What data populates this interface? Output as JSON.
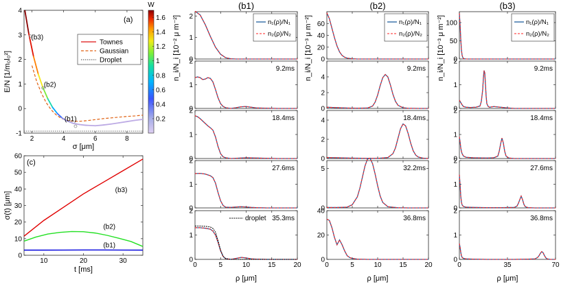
{
  "chart_data": [
    {
      "id": "a",
      "type": "line",
      "panel_label": "(a)",
      "xlabel": "σ [μm]",
      "ylabel": "E/N [1/m₀l₀²]",
      "xlim": [
        1.5,
        9
      ],
      "ylim": [
        -1,
        4
      ],
      "xticks": [
        2,
        4,
        6,
        8
      ],
      "yticks": [
        -1,
        0,
        1,
        2,
        3,
        4
      ],
      "series": [
        {
          "name": "Townes",
          "color": "#dd1111",
          "style": "solid",
          "x": [
            1.5,
            1.8,
            2.1,
            2.4,
            2.7,
            3.0,
            3.3,
            3.6,
            3.9,
            4.2,
            4.6,
            5.0,
            5.4,
            6.0,
            6.5,
            7.0,
            7.5,
            8.0,
            8.5,
            9.0
          ],
          "y": [
            4.2,
            3.05,
            2.12,
            1.4,
            0.84,
            0.4,
            0.05,
            -0.2,
            -0.38,
            -0.5,
            -0.6,
            -0.65,
            -0.68,
            -0.7,
            -0.67,
            -0.63,
            -0.58,
            -0.53,
            -0.48,
            -0.44
          ]
        },
        {
          "name": "Gaussian",
          "color": "#e06010",
          "style": "dashed",
          "x": [
            2.0,
            2.3,
            2.6,
            2.9,
            3.2,
            3.5,
            3.8,
            4.1,
            4.5,
            5.0,
            5.5,
            6.0,
            6.5,
            7.0,
            7.5,
            8.0,
            8.5,
            9.0
          ],
          "y": [
            1.75,
            1.1,
            0.62,
            0.24,
            -0.04,
            -0.24,
            -0.38,
            -0.46,
            -0.51,
            -0.52,
            -0.49,
            -0.45,
            -0.41,
            -0.38,
            -0.35,
            -0.32,
            -0.3,
            -0.27
          ]
        },
        {
          "name": "Droplet",
          "color": "#666666",
          "style": "dotted",
          "x": [
            1.5,
            9.0
          ],
          "y": [
            -0.92,
            -0.92
          ]
        }
      ],
      "markers": [
        {
          "label": "(b3)",
          "x": 1.9,
          "y": 2.95
        },
        {
          "label": "(b2)",
          "x": 2.7,
          "y": 0.84
        },
        {
          "label": "(b1)",
          "x": 4.75,
          "y": -0.72
        }
      ],
      "colorbar": {
        "title": "W",
        "range": [
          0,
          1.7
        ],
        "ticks": [
          0.2,
          0.4,
          0.6,
          0.8,
          1,
          1.2,
          1.4,
          1.6
        ]
      }
    },
    {
      "id": "c",
      "type": "line",
      "panel_label": "(c)",
      "xlabel": "t [ms]",
      "ylabel": "σ(t) [μm]",
      "xlim": [
        5,
        35
      ],
      "ylim": [
        0,
        60
      ],
      "xticks": [
        10,
        20,
        30
      ],
      "yticks": [
        0,
        10,
        20,
        30,
        40,
        50,
        60
      ],
      "series": [
        {
          "name": "(b3)",
          "color": "#e00000",
          "x": [
            5,
            10,
            15,
            20,
            25,
            30,
            35
          ],
          "y": [
            11.5,
            21,
            29,
            37,
            44,
            51,
            58
          ]
        },
        {
          "name": "(b2)",
          "color": "#22e022",
          "x": [
            5,
            8,
            11,
            14,
            17,
            20,
            23,
            26,
            29,
            32,
            35
          ],
          "y": [
            8.5,
            11,
            12.8,
            13.8,
            14.3,
            14.2,
            13.4,
            12,
            10.2,
            8.3,
            5.3
          ]
        },
        {
          "name": "(b1)",
          "color": "#0000dd",
          "x": [
            5,
            10,
            15,
            20,
            25,
            30,
            35
          ],
          "y": [
            3.1,
            3.1,
            3.15,
            3.2,
            3.2,
            3.15,
            3.1
          ]
        }
      ],
      "annotations": [
        {
          "text": "(b3)",
          "x": 28,
          "y": 38
        },
        {
          "text": "(b2)",
          "x": 25,
          "y": 16
        },
        {
          "text": "(b1)",
          "x": 25,
          "y": 4.8
        }
      ]
    },
    {
      "id": "b1",
      "type": "line",
      "title": "(b1)",
      "xlabel": "ρ [μm]",
      "xlim": [
        0,
        20
      ],
      "xticks": [
        0,
        5,
        10,
        15,
        20
      ],
      "ylabel": "n_i/N_i [10⁻² μ m⁻²]",
      "legend": [
        "n₁(ρ)/N₁",
        "n₂(ρ)/N₂"
      ],
      "rows": [
        {
          "time": "",
          "ylim": [
            0,
            2.2
          ],
          "yticks": [
            0,
            1,
            2
          ],
          "x": [
            0,
            1,
            2,
            3,
            4,
            5,
            6,
            7,
            8,
            9,
            10,
            12,
            14,
            16,
            18,
            20
          ],
          "y": [
            2.22,
            2.05,
            1.6,
            1.05,
            0.55,
            0.22,
            0.06,
            0.01,
            0,
            0,
            0,
            0,
            0,
            0,
            0,
            0
          ]
        },
        {
          "time": "9.2ms",
          "ylim": [
            0,
            2
          ],
          "yticks": [
            0,
            1,
            2
          ],
          "x": [
            0,
            0.5,
            1,
            1.5,
            2,
            2.5,
            3,
            3.5,
            4,
            4.5,
            5,
            5.5,
            6,
            7,
            8,
            9,
            10,
            11,
            12,
            14,
            16,
            18,
            20
          ],
          "y": [
            1.3,
            1.33,
            1.3,
            1.22,
            1.24,
            1.3,
            1.27,
            1.12,
            0.8,
            0.45,
            0.2,
            0.08,
            0.03,
            0,
            0.03,
            0.07,
            0.08,
            0.05,
            0.02,
            0.01,
            0,
            0,
            0
          ]
        },
        {
          "time": "18.4ms",
          "ylim": [
            0,
            2
          ],
          "yticks": [
            0,
            1,
            2
          ],
          "x": [
            0,
            0.5,
            1,
            1.5,
            2,
            2.5,
            3,
            3.5,
            4,
            4.5,
            5,
            5.5,
            6,
            7,
            8,
            10,
            12,
            14,
            16,
            18,
            20
          ],
          "y": [
            1.78,
            1.74,
            1.66,
            1.56,
            1.46,
            1.36,
            1.28,
            1.18,
            0.9,
            0.5,
            0.2,
            0.07,
            0.03,
            0,
            0.01,
            0.03,
            0.02,
            0.01,
            0,
            0,
            0
          ]
        },
        {
          "time": "27.6ms",
          "ylim": [
            0,
            2
          ],
          "yticks": [
            0,
            1,
            2
          ],
          "x": [
            0,
            1,
            2,
            3,
            3.5,
            4,
            4.5,
            5,
            5.5,
            6,
            7,
            8,
            9,
            10,
            11,
            12,
            14,
            16,
            18,
            20
          ],
          "y": [
            1.45,
            1.46,
            1.43,
            1.36,
            1.28,
            1.05,
            0.65,
            0.3,
            0.1,
            0.03,
            0.02,
            0.04,
            0.05,
            0.04,
            0.02,
            0.01,
            0,
            0,
            0,
            0
          ]
        },
        {
          "time": "35.3ms",
          "ylim": [
            0,
            2
          ],
          "yticks": [
            0,
            1,
            2
          ],
          "legend_extra": "droplet",
          "x": [
            0,
            1,
            2,
            3,
            3.5,
            4,
            4.5,
            5,
            5.5,
            6,
            7,
            8,
            9,
            10,
            11,
            12,
            14,
            16,
            18,
            20
          ],
          "y": [
            1.3,
            1.3,
            1.28,
            1.24,
            1.16,
            1.0,
            0.7,
            0.35,
            0.12,
            0.03,
            0,
            0.04,
            0.08,
            0.06,
            0.02,
            0.01,
            0,
            0,
            0,
            0
          ],
          "droplet": {
            "x": [
              0,
              1,
              2,
              3,
              3.5,
              4,
              4.5,
              5,
              5.5,
              6,
              7,
              8,
              20
            ],
            "y": [
              1.37,
              1.37,
              1.36,
              1.33,
              1.27,
              1.12,
              0.78,
              0.38,
              0.12,
              0.03,
              0,
              0,
              0
            ]
          }
        }
      ]
    },
    {
      "id": "b2",
      "type": "line",
      "title": "(b2)",
      "xlabel": "ρ [μm]",
      "xlim": [
        0,
        20
      ],
      "xticks": [
        0,
        5,
        10,
        15,
        20
      ],
      "ylabel": "n_i/N_i [10⁻³ μ m⁻²]",
      "legend": [
        "n₁(ρ)/N₁",
        "n₂(ρ)/N₂"
      ],
      "rows": [
        {
          "time": "",
          "ylim": [
            0,
            80
          ],
          "yticks": [
            0,
            20,
            40,
            60
          ],
          "x": [
            0,
            0.5,
            1,
            1.5,
            2,
            2.5,
            3,
            3.5,
            4,
            5,
            6,
            8,
            10,
            15,
            20
          ],
          "y": [
            78,
            68,
            52,
            36,
            22,
            12,
            6,
            3,
            1.5,
            0.4,
            0,
            0,
            0,
            0,
            0
          ]
        },
        {
          "time": "9.2ms",
          "ylim": [
            0,
            6
          ],
          "yticks": [
            0,
            2,
            4
          ],
          "x": [
            0,
            2,
            4,
            6,
            8,
            9,
            9.5,
            10,
            10.5,
            11,
            11.5,
            12,
            12.5,
            13,
            13.5,
            14,
            15,
            16,
            18,
            20
          ],
          "y": [
            0.15,
            0.1,
            0.05,
            0.03,
            0.05,
            0.3,
            0.8,
            1.7,
            2.9,
            3.9,
            4.3,
            4.0,
            3.0,
            1.8,
            0.9,
            0.4,
            0.08,
            0.02,
            0,
            0
          ]
        },
        {
          "time": "18.4ms",
          "ylim": [
            0,
            5
          ],
          "yticks": [
            0,
            2,
            4
          ],
          "x": [
            0,
            2,
            4,
            6,
            8,
            10,
            12,
            13,
            13.5,
            14,
            14.5,
            15,
            15.5,
            16,
            16.5,
            17,
            17.5,
            18,
            19,
            20
          ],
          "y": [
            0.1,
            0.08,
            0.05,
            0.03,
            0.02,
            0.02,
            0.1,
            0.5,
            1.1,
            2.1,
            3.1,
            3.6,
            3.4,
            2.6,
            1.6,
            0.8,
            0.35,
            0.15,
            0.03,
            0
          ]
        },
        {
          "time": "32.2ms",
          "ylim": [
            0,
            6
          ],
          "yticks": [
            0,
            5
          ],
          "x": [
            0,
            2,
            4,
            5,
            6,
            6.5,
            7,
            7.5,
            8,
            8.5,
            9,
            9.5,
            10,
            10.5,
            11,
            12,
            14,
            16,
            18,
            20
          ],
          "y": [
            0.05,
            0.05,
            0.1,
            0.4,
            1.4,
            2.5,
            3.9,
            5.3,
            6.2,
            6.3,
            5.6,
            4.3,
            2.8,
            1.5,
            0.7,
            0.15,
            0.02,
            0,
            0,
            0
          ]
        },
        {
          "time": "36.8ms",
          "ylim": [
            0,
            40
          ],
          "yticks": [
            0,
            20,
            40
          ],
          "x": [
            0,
            0.5,
            1,
            1.5,
            2,
            2.5,
            3,
            3.5,
            4,
            4.5,
            5,
            6,
            8,
            10,
            15,
            20
          ],
          "y": [
            33,
            32,
            26,
            18,
            12,
            16,
            12,
            7,
            3,
            1.5,
            0.8,
            0.2,
            0,
            0,
            0,
            0
          ]
        }
      ]
    },
    {
      "id": "b3",
      "type": "line",
      "title": "(b3)",
      "xlabel": "ρ [μm]",
      "xlim": [
        0,
        70
      ],
      "xticks": [
        0,
        35,
        70
      ],
      "ylabel": "n_i/N_i [10⁻³ μ m⁻²]",
      "legend": [
        "n₁(ρ)/N₁",
        "n₂(ρ)/N₂"
      ],
      "rows": [
        {
          "time": "",
          "ylim": [
            0,
            130
          ],
          "yticks": [
            0,
            50,
            100
          ],
          "x": [
            0,
            0.5,
            1,
            1.5,
            2,
            2.5,
            3,
            4,
            5,
            6,
            10,
            20,
            35,
            50,
            70
          ],
          "y": [
            125,
            95,
            55,
            25,
            10,
            4,
            1.5,
            0.5,
            0.2,
            0,
            0,
            0,
            0,
            0,
            0
          ]
        },
        {
          "time": "9.2ms",
          "ylim": [
            0,
            2
          ],
          "yticks": [
            0,
            1,
            2
          ],
          "x": [
            0,
            1,
            2,
            3,
            5,
            8,
            12,
            15,
            16,
            17,
            17.5,
            18,
            18.5,
            19,
            19.5,
            20,
            21,
            22,
            25,
            30,
            35,
            40,
            50,
            60,
            70
          ],
          "y": [
            0.35,
            0.25,
            0.15,
            0.08,
            0.05,
            0.04,
            0.05,
            0.1,
            0.3,
            0.8,
            1.3,
            1.6,
            1.5,
            1.0,
            0.5,
            0.2,
            0.08,
            0.05,
            0.08,
            0.05,
            0.02,
            0,
            0,
            0,
            0
          ]
        },
        {
          "time": "18.4ms",
          "ylim": [
            0,
            2
          ],
          "yticks": [
            0,
            1,
            2
          ],
          "x": [
            0,
            0.5,
            1,
            1.5,
            2,
            3,
            5,
            10,
            20,
            25,
            28,
            29,
            30,
            31,
            32,
            33,
            34,
            36,
            40,
            50,
            60,
            70
          ],
          "y": [
            0.9,
            0.7,
            0.45,
            0.3,
            0.2,
            0.1,
            0.05,
            0.03,
            0.02,
            0.03,
            0.1,
            0.3,
            0.6,
            0.85,
            0.65,
            0.3,
            0.1,
            0.02,
            0,
            0,
            0,
            0
          ]
        },
        {
          "time": "27.6ms",
          "ylim": [
            0,
            2
          ],
          "yticks": [
            0,
            1,
            2
          ],
          "x": [
            0,
            0.5,
            1,
            1.5,
            2,
            3,
            5,
            10,
            20,
            30,
            40,
            42,
            43,
            44,
            45,
            46,
            47,
            48,
            50,
            55,
            60,
            70
          ],
          "y": [
            1.4,
            1.0,
            0.5,
            0.25,
            0.12,
            0.06,
            0.03,
            0.02,
            0.01,
            0.01,
            0.02,
            0.08,
            0.2,
            0.35,
            0.5,
            0.35,
            0.15,
            0.05,
            0.01,
            0,
            0,
            0
          ]
        },
        {
          "time": "36.8ms",
          "ylim": [
            0,
            2
          ],
          "yticks": [
            0,
            1,
            2
          ],
          "x": [
            0,
            0.5,
            1,
            1.5,
            2,
            3,
            5,
            10,
            20,
            30,
            40,
            50,
            55,
            57,
            58,
            59,
            60,
            61,
            62,
            63,
            64,
            66,
            70
          ],
          "y": [
            0.65,
            0.5,
            0.3,
            0.15,
            0.08,
            0.04,
            0.02,
            0.01,
            0,
            0,
            0,
            0.01,
            0.02,
            0.08,
            0.15,
            0.25,
            0.32,
            0.27,
            0.15,
            0.06,
            0.02,
            0,
            0
          ]
        }
      ]
    }
  ]
}
